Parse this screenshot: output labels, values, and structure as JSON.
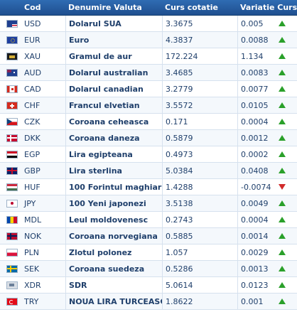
{
  "header": {
    "code": "Cod",
    "name": "Denumire Valuta",
    "rate": "Curs cotatie",
    "variation": "Variatie Curs"
  },
  "rows": [
    {
      "code": "USD",
      "name": "Dolarul SUA",
      "rate": "3.3675",
      "variation": "0.005",
      "trend": "up",
      "flag": "flag-us-icon"
    },
    {
      "code": "EUR",
      "name": "Euro",
      "rate": "4.3837",
      "variation": "0.0088",
      "trend": "up",
      "flag": "flag-eu-icon"
    },
    {
      "code": "XAU",
      "name": "Gramul de aur",
      "rate": "172.224",
      "variation": "1.134",
      "trend": "up",
      "flag": "gold-icon"
    },
    {
      "code": "AUD",
      "name": "Dolarul australian",
      "rate": "3.4685",
      "variation": "0.0083",
      "trend": "up",
      "flag": "flag-au-icon"
    },
    {
      "code": "CAD",
      "name": "Dolarul canadian",
      "rate": "3.2779",
      "variation": "0.0077",
      "trend": "up",
      "flag": "flag-ca-icon"
    },
    {
      "code": "CHF",
      "name": "Francul elvetian",
      "rate": "3.5572",
      "variation": "0.0105",
      "trend": "up",
      "flag": "flag-ch-icon"
    },
    {
      "code": "CZK",
      "name": "Coroana ceheasca",
      "rate": "0.171",
      "variation": "0.0004",
      "trend": "up",
      "flag": "flag-cz-icon"
    },
    {
      "code": "DKK",
      "name": "Coroana daneza",
      "rate": "0.5879",
      "variation": "0.0012",
      "trend": "up",
      "flag": "flag-dk-icon"
    },
    {
      "code": "EGP",
      "name": "Lira egipteana",
      "rate": "0.4973",
      "variation": "0.0002",
      "trend": "up",
      "flag": "flag-eg-icon"
    },
    {
      "code": "GBP",
      "name": "Lira sterlina",
      "rate": "5.0384",
      "variation": "0.0408",
      "trend": "up",
      "flag": "flag-gb-icon"
    },
    {
      "code": "HUF",
      "name": "100 Forintul maghiar",
      "rate": "1.4288",
      "variation": "-0.0074",
      "trend": "down",
      "flag": "flag-hu-icon"
    },
    {
      "code": "JPY",
      "name": "100 Yeni japonezi",
      "rate": "3.5138",
      "variation": "0.0049",
      "trend": "up",
      "flag": "flag-jp-icon"
    },
    {
      "code": "MDL",
      "name": "Leul moldovenesc",
      "rate": "0.2743",
      "variation": "0.0004",
      "trend": "up",
      "flag": "flag-md-icon"
    },
    {
      "code": "NOK",
      "name": "Coroana norvegiana",
      "rate": "0.5885",
      "variation": "0.0014",
      "trend": "up",
      "flag": "flag-no-icon"
    },
    {
      "code": "PLN",
      "name": "Zlotul polonez",
      "rate": "1.057",
      "variation": "0.0029",
      "trend": "up",
      "flag": "flag-pl-icon"
    },
    {
      "code": "SEK",
      "name": "Coroana suedeza",
      "rate": "0.5286",
      "variation": "0.0013",
      "trend": "up",
      "flag": "flag-se-icon"
    },
    {
      "code": "XDR",
      "name": "SDR",
      "rate": "5.0614",
      "variation": "0.0123",
      "trend": "up",
      "flag": "sdr-icon"
    },
    {
      "code": "TRY",
      "name": "NOUA LIRA TURCEASCA",
      "rate": "1.8622",
      "variation": "0.001",
      "trend": "up",
      "flag": "flag-tr-icon"
    }
  ],
  "colors": {
    "header_bg": "#2f6cb3",
    "text": "#1f3f6b",
    "up": "#2aa02a",
    "down": "#d12b2b"
  }
}
